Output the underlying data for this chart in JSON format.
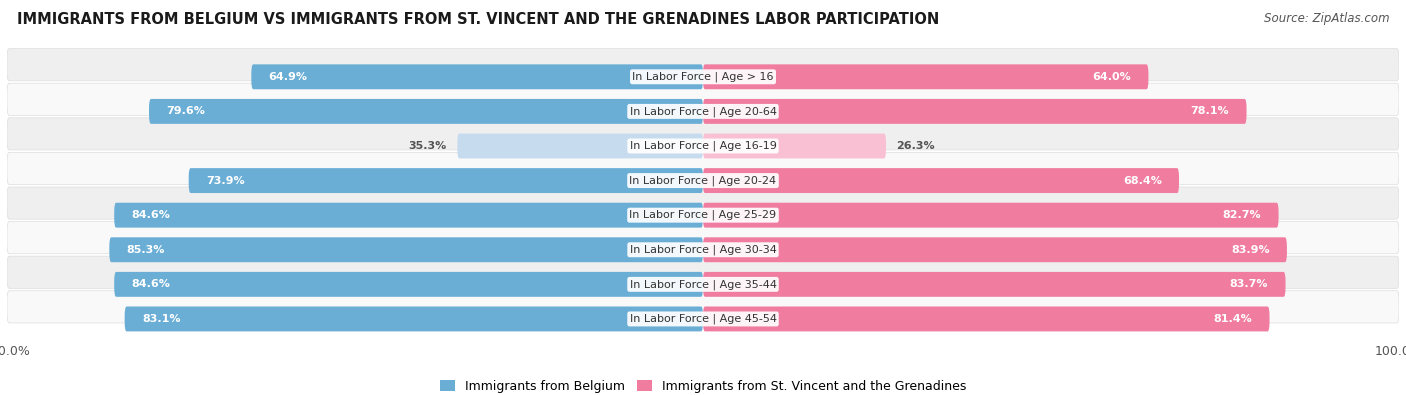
{
  "title": "IMMIGRANTS FROM BELGIUM VS IMMIGRANTS FROM ST. VINCENT AND THE GRENADINES LABOR PARTICIPATION",
  "source": "Source: ZipAtlas.com",
  "categories": [
    "In Labor Force | Age > 16",
    "In Labor Force | Age 20-64",
    "In Labor Force | Age 16-19",
    "In Labor Force | Age 20-24",
    "In Labor Force | Age 25-29",
    "In Labor Force | Age 30-34",
    "In Labor Force | Age 35-44",
    "In Labor Force | Age 45-54"
  ],
  "belgium_values": [
    64.9,
    79.6,
    35.3,
    73.9,
    84.6,
    85.3,
    84.6,
    83.1
  ],
  "svg_values": [
    64.0,
    78.1,
    26.3,
    68.4,
    82.7,
    83.9,
    83.7,
    81.4
  ],
  "belgium_color": "#6AAED6",
  "svg_color": "#F07CA0",
  "belgium_color_light": "#C6DCEE",
  "svg_color_light": "#F9C0D3",
  "legend_belgium": "Immigrants from Belgium",
  "legend_svg": "Immigrants from St. Vincent and the Grenadines",
  "max_val": 100.0,
  "bg_even": "#EFEFEF",
  "bg_odd": "#F9F9F9",
  "title_fontsize": 10.5,
  "source_fontsize": 8.5,
  "bar_label_fontsize": 8,
  "cat_label_fontsize": 8,
  "tick_fontsize": 9
}
